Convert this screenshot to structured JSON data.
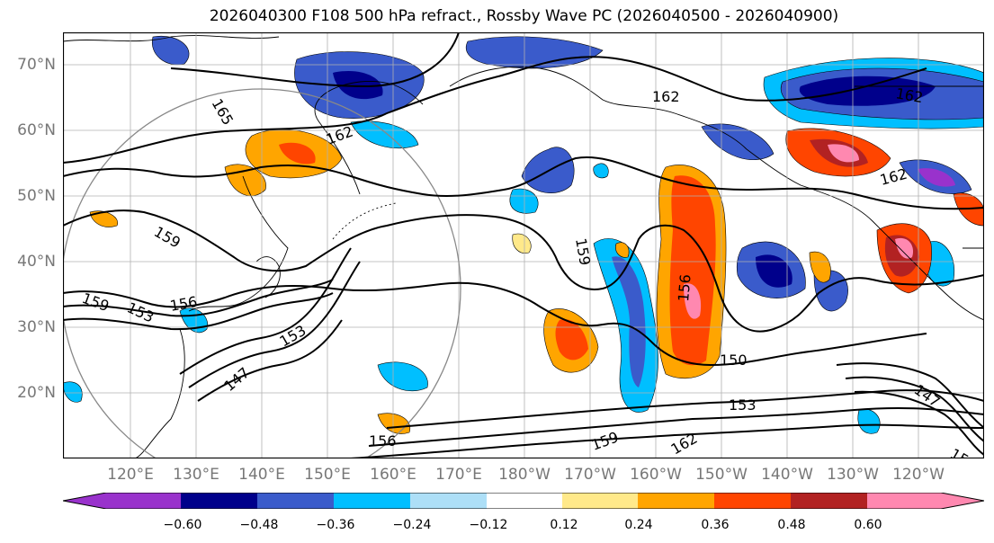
{
  "title": "2026040300 F108 500 hPa refract., Rossby Wave PC (2026040500 - 2026040900)",
  "lat_labels": [
    "70°N",
    "60°N",
    "50°N",
    "40°N",
    "30°N",
    "20°N"
  ],
  "lon_labels": [
    "120°E",
    "130°E",
    "140°E",
    "150°E",
    "160°E",
    "170°E",
    "180°W",
    "170°W",
    "160°W",
    "150°W",
    "140°W",
    "130°W",
    "120°W"
  ],
  "contour_labels": [
    "165",
    "162",
    "162",
    "162",
    "162",
    "159",
    "159",
    "159",
    "156",
    "156",
    "153",
    "153",
    "150",
    "147",
    "147",
    "153",
    "156",
    "159",
    "162",
    "15"
  ],
  "colorbar": {
    "ticks": [
      "−0.60",
      "−0.48",
      "−0.36",
      "−0.24",
      "−0.12",
      "0.12",
      "0.24",
      "0.36",
      "0.48",
      "0.60"
    ],
    "colors": [
      "#9932CC",
      "#00008B",
      "#3A5BCB",
      "#00BFFF",
      "#ADDFF7",
      "#FFFFFF",
      "#FFE98A",
      "#FFA500",
      "#FF4500",
      "#B22222",
      "#FF88B0"
    ]
  }
}
